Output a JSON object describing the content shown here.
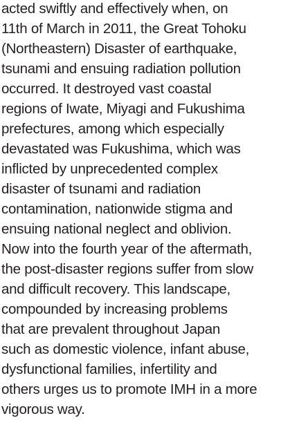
{
  "paragraph": {
    "lines": [
      "acted swiftly and effectively when, on",
      "11th of March in 2011, the Great Tohoku",
      "(Northeastern) Disaster of earthquake,",
      "tsunami and ensuing radiation pollution",
      "occurred. It destroyed vast coastal",
      "regions of Iwate, Miyagi and Fukushima",
      "prefectures, among which especially",
      "devastated was Fukushima, which was",
      "inflicted by unprecedented complex",
      "disaster of tsunami and radiation",
      "contamination, nationwide stigma and",
      "ensuing national neglect and oblivion.",
      "Now into the fourth year of the aftermath,",
      "the post-disaster regions suffer from slow",
      "and difficult recovery. This landscape,",
      "compounded by increasing problems",
      "that are prevalent throughout Japan",
      "such as domestic violence, infant abuse,",
      "dysfunctional families, infertility and",
      "others urges us to promote IMH in a more",
      "vigorous way."
    ]
  }
}
